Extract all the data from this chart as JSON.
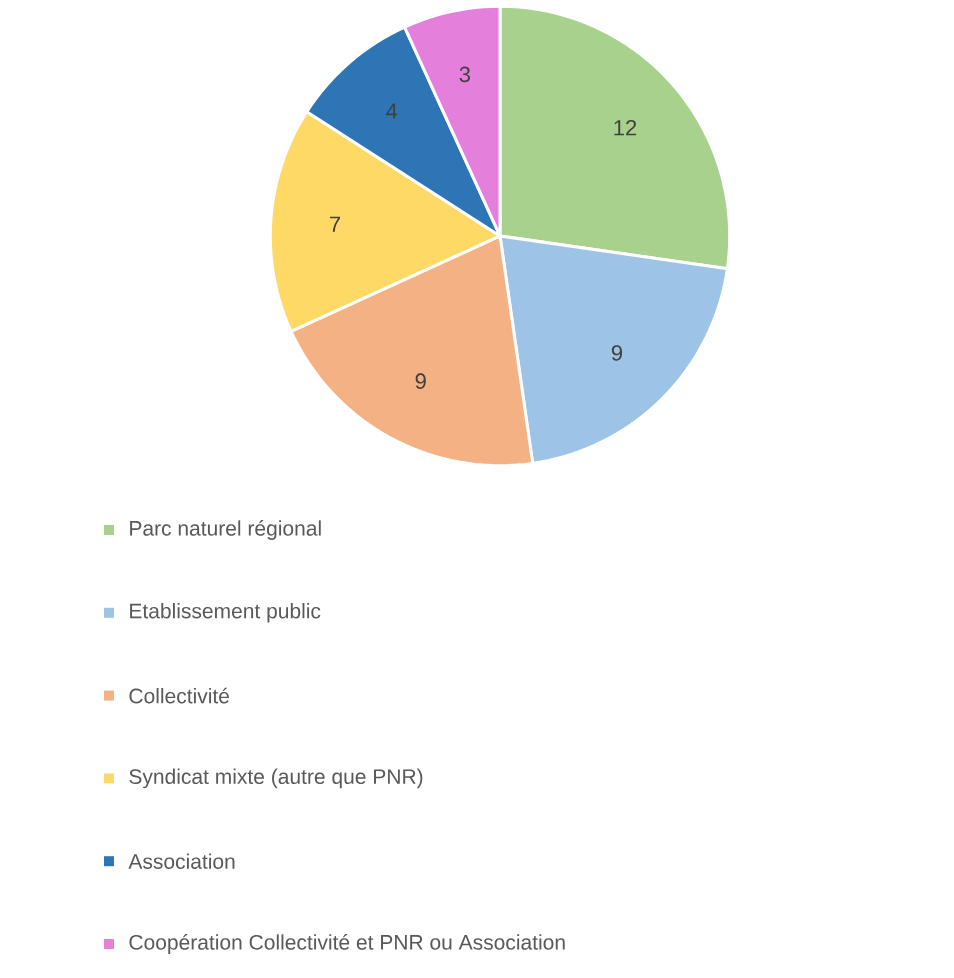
{
  "chart_data": {
    "type": "pie",
    "categories": [
      "Parc naturel régional",
      "Etablissement public",
      "Collectivité",
      "Syndicat mixte (autre que PNR)",
      "Association",
      "Coopération Collectivité et PNR ou Association"
    ],
    "values": [
      12,
      9,
      9,
      7,
      4,
      3
    ],
    "colors": [
      "#a9d18e",
      "#9dc3e6",
      "#f4b183",
      "#ffd966",
      "#2e75b6",
      "#e57fdc"
    ],
    "data_labels": true,
    "legend": "bottom"
  }
}
